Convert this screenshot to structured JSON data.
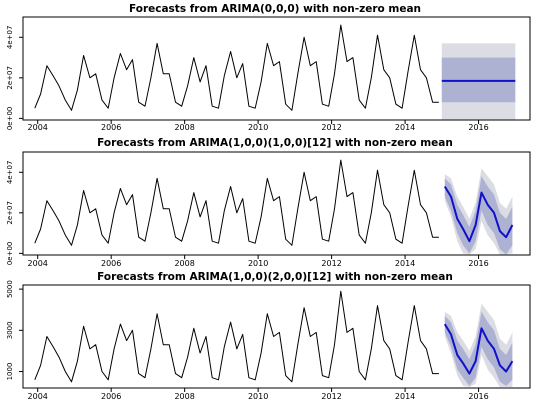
{
  "figure": {
    "colors": {
      "line": "#000000",
      "forecast": "#1010c8",
      "band80": "#aeb2d2",
      "band95": "#dcdce4",
      "frame": "#000000"
    }
  },
  "chart_data": [
    {
      "type": "line",
      "title": "Forecasts from ARIMA(0,0,0) with non-zero mean",
      "xlim": [
        2003.6,
        2017.4
      ],
      "ylim": [
        -800000,
        50000000
      ],
      "x_ticks": [
        2004,
        2006,
        2008,
        2010,
        2012,
        2014,
        2016
      ],
      "x_tick_labels": [
        "2004",
        "2006",
        "2008",
        "2010",
        "2012",
        "2014",
        "2016"
      ],
      "y_ticks": [
        0,
        20000000,
        40000000
      ],
      "y_tick_labels": [
        "0e+00",
        "2e+07",
        "4e+07"
      ],
      "series": [
        {
          "role": "observed",
          "x": [
            2003.92,
            2004.08,
            2004.25,
            2004.42,
            2004.58,
            2004.75,
            2004.92,
            2005.08,
            2005.25,
            2005.42,
            2005.58,
            2005.75,
            2005.92,
            2006.08,
            2006.25,
            2006.42,
            2006.58,
            2006.75,
            2006.92,
            2007.08,
            2007.25,
            2007.42,
            2007.58,
            2007.75,
            2007.92,
            2008.08,
            2008.25,
            2008.42,
            2008.58,
            2008.75,
            2008.92,
            2009.08,
            2009.25,
            2009.42,
            2009.58,
            2009.75,
            2009.92,
            2010.08,
            2010.25,
            2010.42,
            2010.58,
            2010.75,
            2010.92,
            2011.08,
            2011.25,
            2011.42,
            2011.58,
            2011.75,
            2011.92,
            2012.08,
            2012.25,
            2012.42,
            2012.58,
            2012.75,
            2012.92,
            2013.08,
            2013.25,
            2013.42,
            2013.58,
            2013.75,
            2013.92,
            2014.08,
            2014.25,
            2014.42,
            2014.58,
            2014.75,
            2014.92
          ],
          "y": [
            5000000,
            12000000,
            26000000,
            21000000,
            16000000,
            9000000,
            4000000,
            14000000,
            31000000,
            20000000,
            22000000,
            9000000,
            5000000,
            20000000,
            32000000,
            24000000,
            29000000,
            8000000,
            6000000,
            20000000,
            37000000,
            22000000,
            22000000,
            8000000,
            6000000,
            16000000,
            30000000,
            18000000,
            26000000,
            6000000,
            5000000,
            21000000,
            33000000,
            20000000,
            27000000,
            6000000,
            5000000,
            18000000,
            37000000,
            26000000,
            28000000,
            7000000,
            4000000,
            22000000,
            40000000,
            26000000,
            28000000,
            7000000,
            6000000,
            22000000,
            46000000,
            28000000,
            30000000,
            9000000,
            5000000,
            20000000,
            41000000,
            24000000,
            20000000,
            7000000,
            5000000,
            23000000,
            41000000,
            24000000,
            20000000,
            8000000,
            8000000
          ]
        },
        {
          "role": "forecast",
          "x": [
            2015.0,
            2017.0
          ],
          "y": [
            18500000,
            18500000
          ],
          "lower80": [
            8000000,
            8000000
          ],
          "upper80": [
            30000000,
            30000000
          ],
          "lower95": [
            -500000,
            -500000
          ],
          "upper95": [
            37000000,
            37000000
          ]
        }
      ]
    },
    {
      "type": "line",
      "title": "Forecasts from ARIMA(1,0,0)(1,0,0)[12] with non-zero mean",
      "xlim": [
        2003.6,
        2017.4
      ],
      "ylim": [
        -800000,
        50000000
      ],
      "x_ticks": [
        2004,
        2006,
        2008,
        2010,
        2012,
        2014,
        2016
      ],
      "x_tick_labels": [
        "2004",
        "2006",
        "2008",
        "2010",
        "2012",
        "2014",
        "2016"
      ],
      "y_ticks": [
        0,
        20000000,
        40000000
      ],
      "y_tick_labels": [
        "0e+00",
        "2e+07",
        "4e+07"
      ],
      "series": [
        {
          "role": "observed",
          "x": [
            2003.92,
            2004.08,
            2004.25,
            2004.42,
            2004.58,
            2004.75,
            2004.92,
            2005.08,
            2005.25,
            2005.42,
            2005.58,
            2005.75,
            2005.92,
            2006.08,
            2006.25,
            2006.42,
            2006.58,
            2006.75,
            2006.92,
            2007.08,
            2007.25,
            2007.42,
            2007.58,
            2007.75,
            2007.92,
            2008.08,
            2008.25,
            2008.42,
            2008.58,
            2008.75,
            2008.92,
            2009.08,
            2009.25,
            2009.42,
            2009.58,
            2009.75,
            2009.92,
            2010.08,
            2010.25,
            2010.42,
            2010.58,
            2010.75,
            2010.92,
            2011.08,
            2011.25,
            2011.42,
            2011.58,
            2011.75,
            2011.92,
            2012.08,
            2012.25,
            2012.42,
            2012.58,
            2012.75,
            2012.92,
            2013.08,
            2013.25,
            2013.42,
            2013.58,
            2013.75,
            2013.92,
            2014.08,
            2014.25,
            2014.42,
            2014.58,
            2014.75,
            2014.92
          ],
          "y": [
            5000000,
            12000000,
            26000000,
            21000000,
            16000000,
            9000000,
            4000000,
            14000000,
            31000000,
            20000000,
            22000000,
            9000000,
            5000000,
            20000000,
            32000000,
            24000000,
            29000000,
            8000000,
            6000000,
            20000000,
            37000000,
            22000000,
            22000000,
            8000000,
            6000000,
            16000000,
            30000000,
            18000000,
            26000000,
            6000000,
            5000000,
            21000000,
            33000000,
            20000000,
            27000000,
            6000000,
            5000000,
            18000000,
            37000000,
            26000000,
            28000000,
            7000000,
            4000000,
            22000000,
            40000000,
            26000000,
            28000000,
            7000000,
            6000000,
            22000000,
            46000000,
            28000000,
            30000000,
            9000000,
            5000000,
            20000000,
            41000000,
            24000000,
            20000000,
            7000000,
            5000000,
            23000000,
            41000000,
            24000000,
            20000000,
            8000000,
            8000000
          ]
        },
        {
          "role": "forecast",
          "x": [
            2015.08,
            2015.25,
            2015.42,
            2015.58,
            2015.75,
            2015.92,
            2016.08,
            2016.25,
            2016.42,
            2016.58,
            2016.75,
            2016.92
          ],
          "y": [
            33000000,
            28000000,
            17000000,
            12000000,
            6000000,
            14000000,
            30000000,
            24000000,
            20000000,
            11000000,
            8000000,
            14000000
          ],
          "lower80": [
            28000000,
            21000000,
            10000000,
            4000000,
            0,
            6000000,
            21000000,
            14000000,
            10000000,
            2000000,
            -500000,
            4000000
          ],
          "upper80": [
            37000000,
            34000000,
            24000000,
            19000000,
            13000000,
            21000000,
            38000000,
            33000000,
            29000000,
            20000000,
            17000000,
            23000000
          ],
          "lower95": [
            26000000,
            18000000,
            6000000,
            0,
            -500000,
            2000000,
            16000000,
            9000000,
            5000000,
            -500000,
            -500000,
            0
          ],
          "upper95": [
            39000000,
            37000000,
            28000000,
            23000000,
            17000000,
            25000000,
            42000000,
            38000000,
            34000000,
            25000000,
            22000000,
            28000000
          ]
        }
      ]
    },
    {
      "type": "line",
      "title": "Forecasts from ARIMA(1,0,0)(2,0,0)[12] with non-zero mean",
      "xlim": [
        2003.6,
        2017.4
      ],
      "ylim": [
        200,
        5200
      ],
      "x_ticks": [
        2004,
        2006,
        2008,
        2010,
        2012,
        2014,
        2016
      ],
      "x_tick_labels": [
        "2004",
        "2006",
        "2008",
        "2010",
        "2012",
        "2014",
        "2016"
      ],
      "y_ticks": [
        1000,
        3000,
        5000
      ],
      "y_tick_labels": [
        "1000",
        "3000",
        "5000"
      ],
      "series": [
        {
          "role": "observed",
          "x": [
            2003.92,
            2004.08,
            2004.25,
            2004.42,
            2004.58,
            2004.75,
            2004.92,
            2005.08,
            2005.25,
            2005.42,
            2005.58,
            2005.75,
            2005.92,
            2006.08,
            2006.25,
            2006.42,
            2006.58,
            2006.75,
            2006.92,
            2007.08,
            2007.25,
            2007.42,
            2007.58,
            2007.75,
            2007.92,
            2008.08,
            2008.25,
            2008.42,
            2008.58,
            2008.75,
            2008.92,
            2009.08,
            2009.25,
            2009.42,
            2009.58,
            2009.75,
            2009.92,
            2010.08,
            2010.25,
            2010.42,
            2010.58,
            2010.75,
            2010.92,
            2011.08,
            2011.25,
            2011.42,
            2011.58,
            2011.75,
            2011.92,
            2012.08,
            2012.25,
            2012.42,
            2012.58,
            2012.75,
            2012.92,
            2013.08,
            2013.25,
            2013.42,
            2013.58,
            2013.75,
            2013.92,
            2014.08,
            2014.25,
            2014.42,
            2014.58,
            2014.75,
            2014.92
          ],
          "y": [
            600,
            1300,
            2700,
            2200,
            1700,
            1000,
            500,
            1500,
            3200,
            2100,
            2300,
            1000,
            600,
            2100,
            3300,
            2500,
            3000,
            900,
            700,
            2100,
            3800,
            2300,
            2300,
            900,
            700,
            1700,
            3100,
            1900,
            2700,
            700,
            600,
            2200,
            3400,
            2100,
            2800,
            700,
            600,
            1900,
            3800,
            2700,
            2900,
            800,
            500,
            2300,
            4100,
            2700,
            2900,
            800,
            700,
            2300,
            4900,
            2900,
            3100,
            1000,
            600,
            2100,
            4200,
            2500,
            2100,
            800,
            600,
            2400,
            4200,
            2500,
            2100,
            900,
            900
          ]
        },
        {
          "role": "forecast",
          "x": [
            2015.08,
            2015.25,
            2015.42,
            2015.58,
            2015.75,
            2015.92,
            2016.08,
            2016.25,
            2016.42,
            2016.58,
            2016.75,
            2016.92
          ],
          "y": [
            3300,
            2800,
            1800,
            1400,
            900,
            1500,
            3100,
            2500,
            2100,
            1300,
            1000,
            1500
          ],
          "lower80": [
            2900,
            2200,
            1100,
            700,
            300,
            700,
            2200,
            1600,
            1200,
            500,
            300,
            600
          ],
          "upper80": [
            3700,
            3400,
            2500,
            2100,
            1600,
            2300,
            3900,
            3400,
            3000,
            2100,
            1800,
            2400
          ],
          "lower95": [
            2700,
            1900,
            800,
            300,
            250,
            400,
            1800,
            1100,
            700,
            250,
            250,
            250
          ],
          "upper95": [
            3900,
            3700,
            2900,
            2500,
            2000,
            2700,
            4300,
            3900,
            3500,
            2600,
            2300,
            2900
          ]
        }
      ]
    }
  ]
}
